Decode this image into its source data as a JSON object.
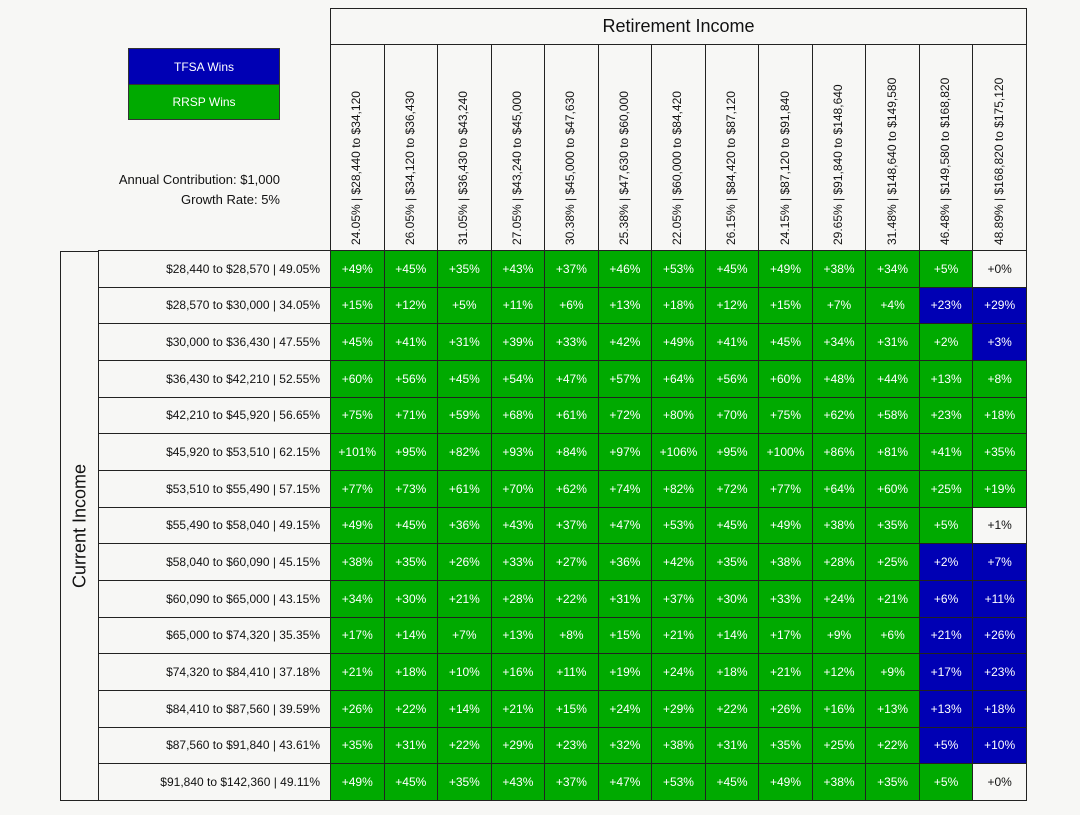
{
  "legend": {
    "tfsa": "TFSA Wins",
    "rrsp": "RRSP Wins"
  },
  "colors": {
    "rrsp": "#00aa00",
    "tfsa": "#0000b4",
    "tie": "#f7f7f5"
  },
  "params": {
    "contribution": "Annual Contribution: $1,000",
    "growth": "Growth Rate: 5%"
  },
  "chart_data": {
    "type": "heatmap",
    "x_title": "Retirement Income",
    "y_title": "Current Income",
    "columns": [
      "24.05%  |  $28,440 to $34,120",
      "26.05%  |  $34,120 to $36,430",
      "31.05%  |  $36,430 to $43,240",
      "27.05%  |  $43,240 to $45,000",
      "30.38%  |  $45,000 to $47,630",
      "25.38%  |  $47,630 to $60,000",
      "22.05%  |  $60,000 to $84,420",
      "26.15%  |  $84,420 to $87,120",
      "24.15%  |  $87,120 to $91,840",
      "29.65%  |  $91,840 to $148,640",
      "31.48%  |  $148,640 to $149,580",
      "46.48%  |  $149,580 to $168,820",
      "48.89%  |  $168,820 to $175,120"
    ],
    "rows": [
      "$28,440 to $28,570  |  49.05%",
      "$28,570 to $30,000  |  34.05%",
      "$30,000 to $36,430  |  47.55%",
      "$36,430 to $42,210  |  52.55%",
      "$42,210 to $45,920  |  56.65%",
      "$45,920 to $53,510  |  62.15%",
      "$53,510 to $55,490  |  57.15%",
      "$55,490 to $58,040  |  49.15%",
      "$58,040 to $60,090  |  45.15%",
      "$60,090 to $65,000  |  43.15%",
      "$65,000 to $74,320  |  35.35%",
      "$74,320 to $84,410  |  37.18%",
      "$84,410 to $87,560  |  39.59%",
      "$87,560 to $91,840  |  43.61%",
      "$91,840 to $142,360  |  49.11%"
    ],
    "values": [
      [
        "+49%",
        "+45%",
        "+35%",
        "+43%",
        "+37%",
        "+46%",
        "+53%",
        "+45%",
        "+49%",
        "+38%",
        "+34%",
        "+5%",
        "+0%"
      ],
      [
        "+15%",
        "+12%",
        "+5%",
        "+11%",
        "+6%",
        "+13%",
        "+18%",
        "+12%",
        "+15%",
        "+7%",
        "+4%",
        "+23%",
        "+29%"
      ],
      [
        "+45%",
        "+41%",
        "+31%",
        "+39%",
        "+33%",
        "+42%",
        "+49%",
        "+41%",
        "+45%",
        "+34%",
        "+31%",
        "+2%",
        "+3%"
      ],
      [
        "+60%",
        "+56%",
        "+45%",
        "+54%",
        "+47%",
        "+57%",
        "+64%",
        "+56%",
        "+60%",
        "+48%",
        "+44%",
        "+13%",
        "+8%"
      ],
      [
        "+75%",
        "+71%",
        "+59%",
        "+68%",
        "+61%",
        "+72%",
        "+80%",
        "+70%",
        "+75%",
        "+62%",
        "+58%",
        "+23%",
        "+18%"
      ],
      [
        "+101%",
        "+95%",
        "+82%",
        "+93%",
        "+84%",
        "+97%",
        "+106%",
        "+95%",
        "+100%",
        "+86%",
        "+81%",
        "+41%",
        "+35%"
      ],
      [
        "+77%",
        "+73%",
        "+61%",
        "+70%",
        "+62%",
        "+74%",
        "+82%",
        "+72%",
        "+77%",
        "+64%",
        "+60%",
        "+25%",
        "+19%"
      ],
      [
        "+49%",
        "+45%",
        "+36%",
        "+43%",
        "+37%",
        "+47%",
        "+53%",
        "+45%",
        "+49%",
        "+38%",
        "+35%",
        "+5%",
        "+1%"
      ],
      [
        "+38%",
        "+35%",
        "+26%",
        "+33%",
        "+27%",
        "+36%",
        "+42%",
        "+35%",
        "+38%",
        "+28%",
        "+25%",
        "+2%",
        "+7%"
      ],
      [
        "+34%",
        "+30%",
        "+21%",
        "+28%",
        "+22%",
        "+31%",
        "+37%",
        "+30%",
        "+33%",
        "+24%",
        "+21%",
        "+6%",
        "+11%"
      ],
      [
        "+17%",
        "+14%",
        "+7%",
        "+13%",
        "+8%",
        "+15%",
        "+21%",
        "+14%",
        "+17%",
        "+9%",
        "+6%",
        "+21%",
        "+26%"
      ],
      [
        "+21%",
        "+18%",
        "+10%",
        "+16%",
        "+11%",
        "+19%",
        "+24%",
        "+18%",
        "+21%",
        "+12%",
        "+9%",
        "+17%",
        "+23%"
      ],
      [
        "+26%",
        "+22%",
        "+14%",
        "+21%",
        "+15%",
        "+24%",
        "+29%",
        "+22%",
        "+26%",
        "+16%",
        "+13%",
        "+13%",
        "+18%"
      ],
      [
        "+35%",
        "+31%",
        "+22%",
        "+29%",
        "+23%",
        "+32%",
        "+38%",
        "+31%",
        "+35%",
        "+25%",
        "+22%",
        "+5%",
        "+10%"
      ],
      [
        "+49%",
        "+45%",
        "+35%",
        "+43%",
        "+37%",
        "+47%",
        "+53%",
        "+45%",
        "+49%",
        "+38%",
        "+35%",
        "+5%",
        "+0%"
      ]
    ],
    "winner": [
      [
        "R",
        "R",
        "R",
        "R",
        "R",
        "R",
        "R",
        "R",
        "R",
        "R",
        "R",
        "R",
        "N"
      ],
      [
        "R",
        "R",
        "R",
        "R",
        "R",
        "R",
        "R",
        "R",
        "R",
        "R",
        "R",
        "T",
        "T"
      ],
      [
        "R",
        "R",
        "R",
        "R",
        "R",
        "R",
        "R",
        "R",
        "R",
        "R",
        "R",
        "R",
        "T"
      ],
      [
        "R",
        "R",
        "R",
        "R",
        "R",
        "R",
        "R",
        "R",
        "R",
        "R",
        "R",
        "R",
        "R"
      ],
      [
        "R",
        "R",
        "R",
        "R",
        "R",
        "R",
        "R",
        "R",
        "R",
        "R",
        "R",
        "R",
        "R"
      ],
      [
        "R",
        "R",
        "R",
        "R",
        "R",
        "R",
        "R",
        "R",
        "R",
        "R",
        "R",
        "R",
        "R"
      ],
      [
        "R",
        "R",
        "R",
        "R",
        "R",
        "R",
        "R",
        "R",
        "R",
        "R",
        "R",
        "R",
        "R"
      ],
      [
        "R",
        "R",
        "R",
        "R",
        "R",
        "R",
        "R",
        "R",
        "R",
        "R",
        "R",
        "R",
        "N"
      ],
      [
        "R",
        "R",
        "R",
        "R",
        "R",
        "R",
        "R",
        "R",
        "R",
        "R",
        "R",
        "T",
        "T"
      ],
      [
        "R",
        "R",
        "R",
        "R",
        "R",
        "R",
        "R",
        "R",
        "R",
        "R",
        "R",
        "T",
        "T"
      ],
      [
        "R",
        "R",
        "R",
        "R",
        "R",
        "R",
        "R",
        "R",
        "R",
        "R",
        "R",
        "T",
        "T"
      ],
      [
        "R",
        "R",
        "R",
        "R",
        "R",
        "R",
        "R",
        "R",
        "R",
        "R",
        "R",
        "T",
        "T"
      ],
      [
        "R",
        "R",
        "R",
        "R",
        "R",
        "R",
        "R",
        "R",
        "R",
        "R",
        "R",
        "T",
        "T"
      ],
      [
        "R",
        "R",
        "R",
        "R",
        "R",
        "R",
        "R",
        "R",
        "R",
        "R",
        "R",
        "T",
        "T"
      ],
      [
        "R",
        "R",
        "R",
        "R",
        "R",
        "R",
        "R",
        "R",
        "R",
        "R",
        "R",
        "R",
        "N"
      ]
    ]
  }
}
